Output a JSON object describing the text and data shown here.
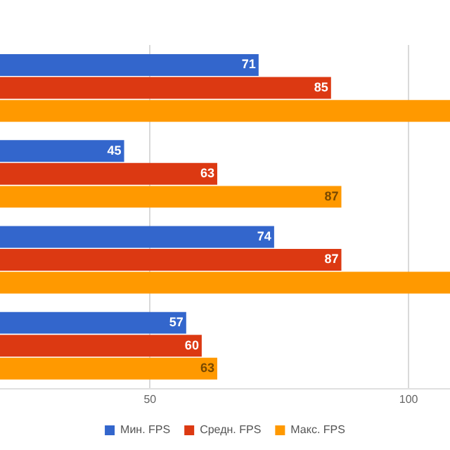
{
  "chart_data": {
    "type": "bar",
    "orientation": "horizontal",
    "categories": [
      null,
      null,
      null,
      null
    ],
    "series": [
      {
        "name": "Мин. FPS",
        "color": "#3366cc",
        "values": [
          71,
          45,
          74,
          57
        ],
        "value_labels": [
          "71",
          "45",
          "74",
          "57"
        ]
      },
      {
        "name": "Средн. FPS",
        "color": "#dc3912",
        "values": [
          85,
          63,
          87,
          60
        ],
        "value_labels": [
          "85",
          "63",
          "87",
          "60"
        ]
      },
      {
        "name": "Макс. FPS",
        "color": "#ff9900",
        "values": [
          108,
          87,
          108,
          63
        ],
        "value_labels": [
          null,
          "87",
          null,
          "63"
        ]
      }
    ],
    "xlim": [
      21,
      108
    ],
    "xticks": [
      50,
      100
    ],
    "grid": "x",
    "legend": "bottom"
  }
}
